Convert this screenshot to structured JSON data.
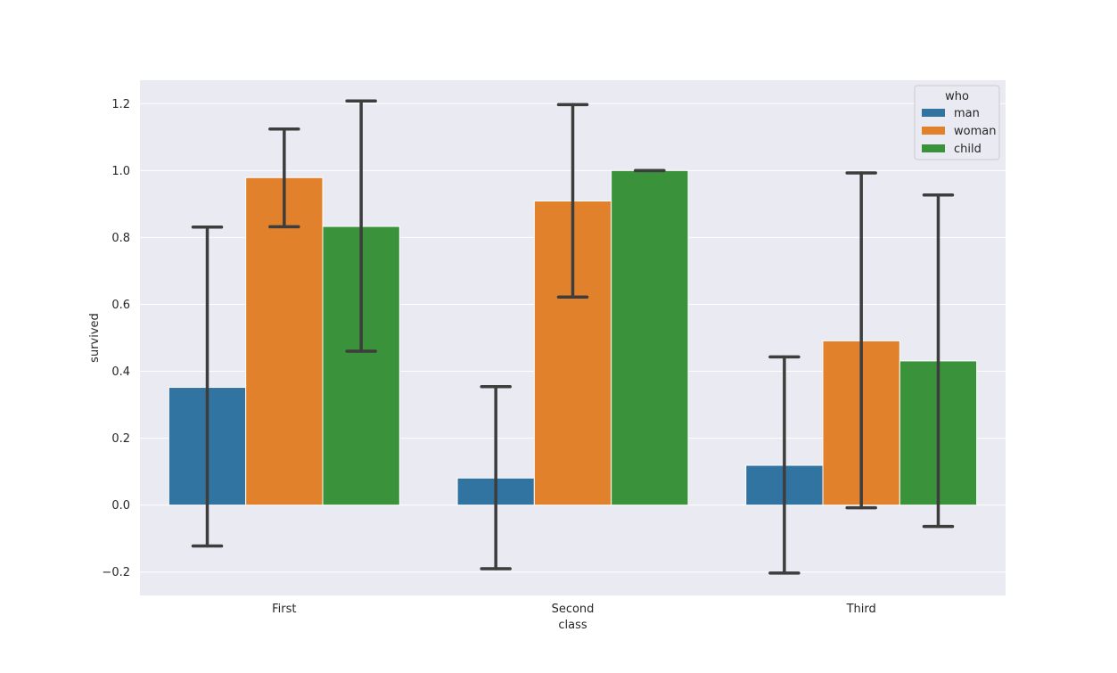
{
  "chart_data": {
    "type": "bar",
    "xlabel": "class",
    "ylabel": "survived",
    "categories": [
      "First",
      "Second",
      "Third"
    ],
    "ylim": [
      -0.27,
      1.27
    ],
    "yticks": [
      -0.2,
      0.0,
      0.2,
      0.4,
      0.6,
      0.8,
      1.0,
      1.2
    ],
    "ytick_labels": [
      "−0.2",
      "0.0",
      "0.2",
      "0.4",
      "0.6",
      "0.8",
      "1.0",
      "1.2"
    ],
    "grid": true,
    "legend": {
      "title": "who",
      "placement": "upper right"
    },
    "series": [
      {
        "name": "man",
        "color": "#3274a1",
        "values": [
          0.352,
          0.081,
          0.119
        ],
        "error_low": [
          -0.122,
          -0.19,
          -0.203
        ],
        "error_high": [
          0.831,
          0.354,
          0.443
        ]
      },
      {
        "name": "woman",
        "color": "#e1812c",
        "values": [
          0.979,
          0.909,
          0.491
        ],
        "error_low": [
          0.832,
          0.622,
          -0.008
        ],
        "error_high": [
          1.124,
          1.197,
          0.993
        ]
      },
      {
        "name": "child",
        "color": "#3a923a",
        "values": [
          0.833,
          1.0,
          0.431
        ],
        "error_low": [
          0.46,
          1.0,
          -0.064
        ],
        "error_high": [
          1.208,
          1.0,
          0.927
        ]
      }
    ]
  }
}
